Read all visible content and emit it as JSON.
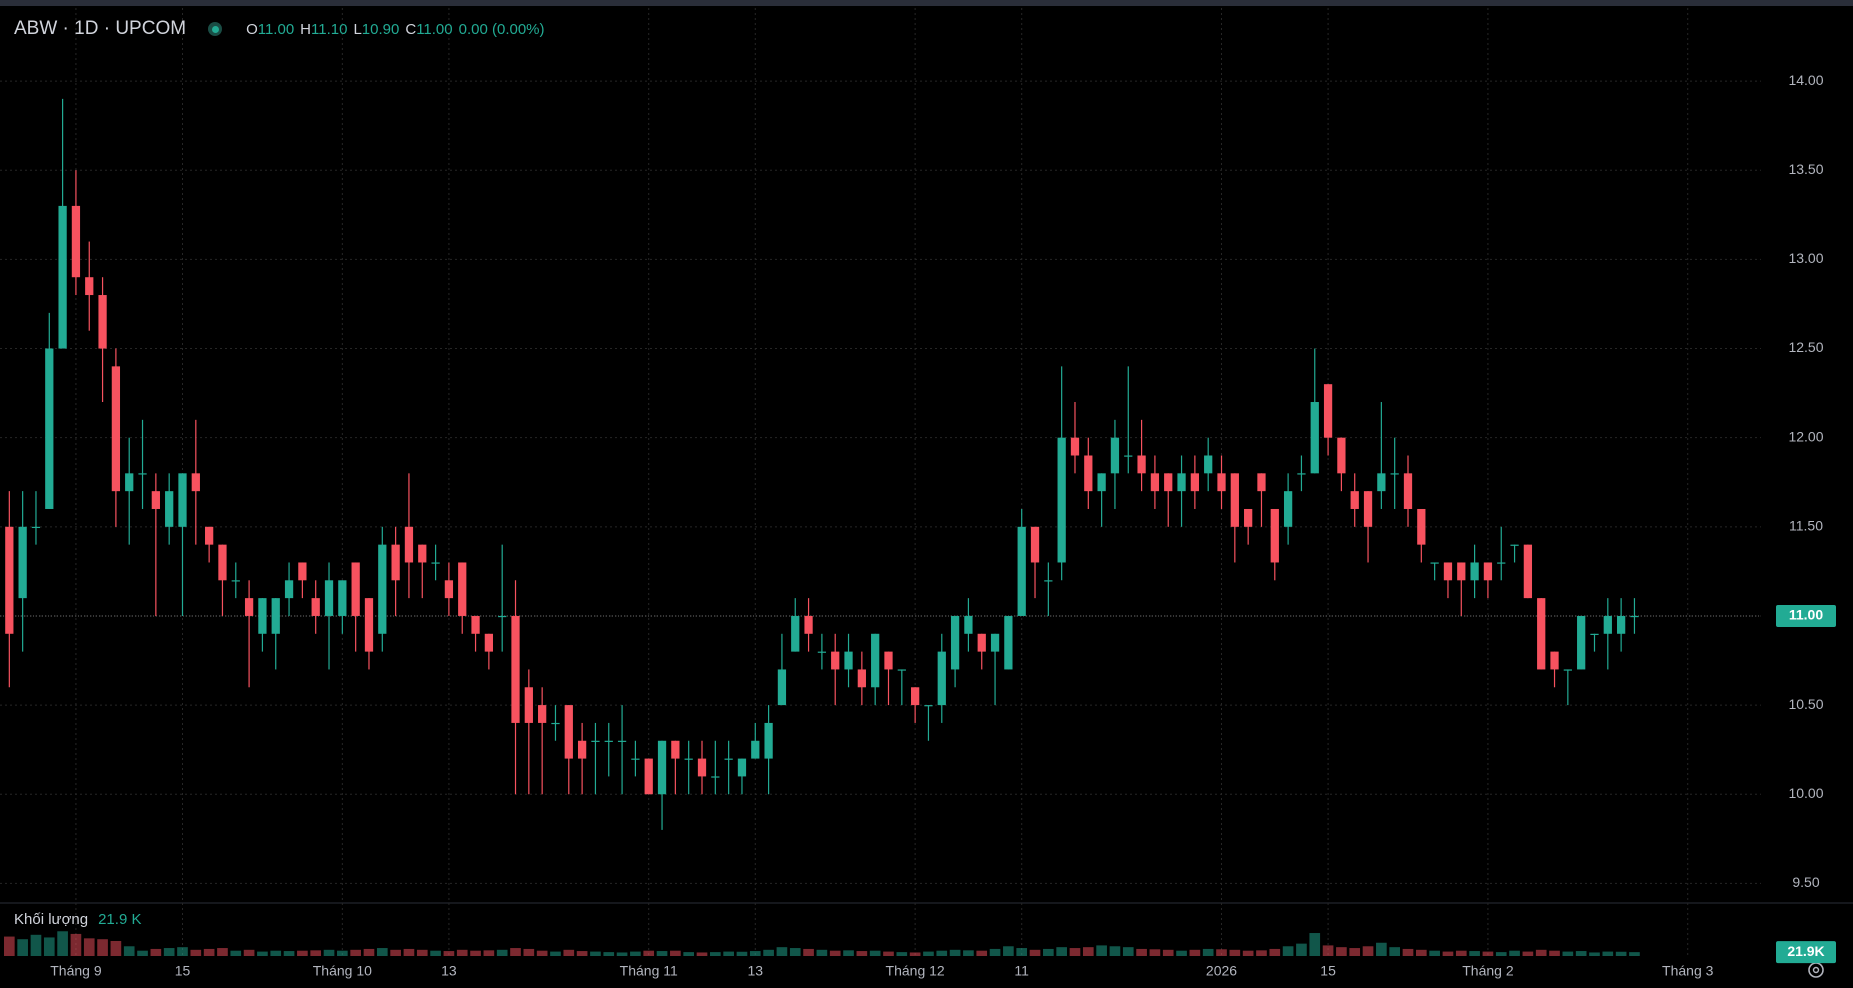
{
  "chart_data": {
    "type": "candlestick",
    "title": "ABW · 1D · UPCOM",
    "legend": [
      {
        "key": "O",
        "value": "11.00"
      },
      {
        "key": "H",
        "value": "11.10"
      },
      {
        "key": "L",
        "value": "10.90"
      },
      {
        "key": "C",
        "value": "11.00"
      }
    ],
    "change": "0.00 (0.00%)",
    "up_color": "#22ab94",
    "down_color": "#f7525f",
    "volume_up_color": "rgba(34,171,148,0.5)",
    "volume_down_color": "rgba(247,82,95,0.5)",
    "open": [
      11.5,
      11.1,
      11.5,
      11.6,
      12.5,
      13.3,
      12.9,
      12.8,
      12.4,
      11.7,
      11.8,
      11.7,
      11.5,
      11.5,
      11.8,
      11.5,
      11.4,
      11.2,
      11.1,
      10.9,
      10.9,
      11.1,
      11.3,
      11.1,
      11.0,
      11.0,
      11.3,
      11.1,
      10.9,
      11.4,
      11.5,
      11.4,
      11.3,
      11.2,
      11.3,
      11.0,
      10.9,
      11.0,
      11.0,
      10.6,
      10.5,
      10.4,
      10.5,
      10.3,
      10.3,
      10.3,
      10.3,
      10.2,
      10.2,
      10.0,
      10.3,
      10.2,
      10.2,
      10.1,
      10.2,
      10.1,
      10.2,
      10.2,
      10.5,
      10.8,
      11.0,
      10.8,
      10.8,
      10.7,
      10.7,
      10.6,
      10.8,
      10.7,
      10.6,
      10.5,
      10.5,
      10.7,
      10.9,
      10.9,
      10.8,
      10.7,
      11.0,
      11.5,
      11.2,
      11.3,
      12.0,
      11.9,
      11.7,
      11.8,
      11.9,
      11.9,
      11.8,
      11.8,
      11.7,
      11.8,
      11.8,
      11.8,
      11.8,
      11.6,
      11.8,
      11.6,
      11.5,
      11.8,
      11.8,
      12.3,
      12.0,
      11.7,
      11.7,
      11.7,
      11.8,
      11.8,
      11.6,
      11.3,
      11.3,
      11.3,
      11.2,
      11.3,
      11.3,
      11.4,
      11.4,
      11.1,
      10.8,
      10.7,
      10.7,
      10.9,
      10.9,
      10.9,
      11.0
    ],
    "high": [
      11.7,
      11.7,
      11.7,
      12.7,
      13.9,
      13.5,
      13.1,
      12.9,
      12.5,
      12.0,
      12.1,
      11.8,
      11.8,
      11.8,
      12.1,
      11.5,
      11.4,
      11.3,
      11.2,
      11.1,
      11.1,
      11.3,
      11.3,
      11.2,
      11.3,
      11.2,
      11.3,
      11.1,
      11.5,
      11.5,
      11.8,
      11.4,
      11.4,
      11.3,
      11.3,
      11.0,
      10.9,
      11.4,
      11.2,
      10.7,
      10.6,
      10.5,
      10.5,
      10.4,
      10.4,
      10.4,
      10.5,
      10.3,
      10.2,
      10.3,
      10.3,
      10.3,
      10.3,
      10.3,
      10.3,
      10.2,
      10.4,
      10.5,
      10.9,
      11.1,
      11.1,
      10.9,
      10.9,
      10.9,
      10.8,
      10.9,
      10.8,
      10.7,
      10.6,
      10.5,
      10.9,
      11.0,
      11.1,
      10.9,
      10.9,
      11.0,
      11.6,
      11.5,
      11.3,
      12.4,
      12.2,
      12.0,
      11.8,
      12.1,
      12.4,
      12.1,
      11.9,
      11.8,
      11.9,
      11.9,
      12.0,
      11.9,
      11.8,
      11.6,
      11.8,
      11.6,
      11.8,
      11.9,
      12.5,
      12.3,
      12.0,
      11.8,
      11.7,
      12.2,
      12.0,
      11.9,
      11.6,
      11.3,
      11.3,
      11.3,
      11.4,
      11.3,
      11.5,
      11.4,
      11.4,
      11.1,
      10.8,
      10.7,
      11.0,
      10.9,
      11.1,
      11.1,
      11.1
    ],
    "low": [
      10.6,
      10.8,
      11.4,
      11.6,
      12.5,
      12.8,
      12.6,
      12.2,
      11.5,
      11.4,
      11.6,
      11.0,
      11.4,
      11.0,
      11.4,
      11.3,
      11.0,
      11.1,
      10.6,
      10.8,
      10.7,
      11.0,
      11.1,
      10.9,
      10.7,
      10.9,
      10.8,
      10.7,
      10.8,
      11.0,
      11.1,
      11.1,
      11.2,
      11.0,
      10.9,
      10.8,
      10.7,
      10.8,
      10.0,
      10.0,
      10.0,
      10.3,
      10.0,
      10.0,
      10.0,
      10.1,
      10.0,
      10.1,
      10.0,
      9.8,
      10.0,
      10.0,
      10.0,
      10.0,
      10.0,
      10.0,
      10.2,
      10.0,
      10.5,
      10.8,
      10.8,
      10.7,
      10.5,
      10.6,
      10.5,
      10.5,
      10.5,
      10.5,
      10.4,
      10.3,
      10.4,
      10.6,
      10.8,
      10.7,
      10.5,
      10.7,
      11.0,
      11.1,
      11.0,
      11.2,
      11.8,
      11.6,
      11.5,
      11.6,
      11.8,
      11.7,
      11.6,
      11.5,
      11.5,
      11.6,
      11.7,
      11.6,
      11.3,
      11.4,
      11.5,
      11.2,
      11.4,
      11.7,
      11.8,
      11.9,
      11.7,
      11.5,
      11.3,
      11.6,
      11.6,
      11.5,
      11.3,
      11.2,
      11.1,
      11.0,
      11.1,
      11.1,
      11.2,
      11.3,
      11.1,
      10.7,
      10.6,
      10.5,
      10.7,
      10.8,
      10.7,
      10.8,
      10.9
    ],
    "close": [
      10.9,
      11.5,
      11.5,
      12.5,
      13.3,
      12.9,
      12.8,
      12.5,
      11.7,
      11.8,
      11.8,
      11.6,
      11.7,
      11.8,
      11.7,
      11.4,
      11.2,
      11.2,
      11.0,
      11.1,
      11.1,
      11.2,
      11.2,
      11.0,
      11.2,
      11.2,
      11.0,
      10.8,
      11.4,
      11.2,
      11.3,
      11.3,
      11.3,
      11.1,
      11.0,
      10.9,
      10.8,
      11.0,
      10.4,
      10.4,
      10.4,
      10.4,
      10.2,
      10.2,
      10.3,
      10.3,
      10.3,
      10.2,
      10.0,
      10.3,
      10.2,
      10.2,
      10.1,
      10.1,
      10.2,
      10.2,
      10.3,
      10.4,
      10.7,
      11.0,
      10.9,
      10.8,
      10.7,
      10.8,
      10.6,
      10.9,
      10.7,
      10.7,
      10.5,
      10.5,
      10.8,
      11.0,
      11.0,
      10.8,
      10.9,
      11.0,
      11.5,
      11.3,
      11.2,
      12.0,
      11.9,
      11.7,
      11.8,
      12.0,
      11.9,
      11.8,
      11.7,
      11.7,
      11.8,
      11.7,
      11.9,
      11.7,
      11.5,
      11.5,
      11.7,
      11.3,
      11.7,
      11.8,
      12.2,
      12.0,
      11.8,
      11.6,
      11.5,
      11.8,
      11.8,
      11.6,
      11.4,
      11.3,
      11.2,
      11.2,
      11.3,
      11.2,
      11.3,
      11.4,
      11.1,
      10.7,
      10.7,
      10.7,
      11.0,
      10.9,
      11.0,
      11.0,
      11.0
    ],
    "volume": [
      110,
      95,
      120,
      105,
      140,
      125,
      100,
      95,
      85,
      55,
      30,
      40,
      45,
      50,
      35,
      40,
      45,
      30,
      35,
      25,
      30,
      28,
      30,
      32,
      35,
      30,
      35,
      40,
      45,
      35,
      40,
      35,
      30,
      28,
      35,
      30,
      32,
      35,
      45,
      40,
      30,
      25,
      35,
      28,
      25,
      22,
      20,
      25,
      30,
      28,
      30,
      22,
      20,
      22,
      25,
      24,
      28,
      35,
      50,
      45,
      40,
      35,
      30,
      32,
      28,
      30,
      25,
      22,
      20,
      25,
      30,
      35,
      32,
      30,
      40,
      55,
      45,
      35,
      40,
      50,
      45,
      50,
      60,
      55,
      50,
      40,
      38,
      35,
      30,
      35,
      40,
      38,
      35,
      30,
      32,
      40,
      55,
      70,
      130,
      60,
      50,
      45,
      55,
      75,
      50,
      40,
      35,
      30,
      25,
      30,
      28,
      25,
      22,
      30,
      25,
      35,
      30,
      25,
      28,
      20,
      25,
      24,
      21.9
    ],
    "volume_label": "Khối lượng",
    "volume_value_label": "21.9 K",
    "volume_badge": "21.9K",
    "volume_ylim": [
      0,
      300
    ],
    "last_price": {
      "value": 11,
      "label": "11.00"
    },
    "ylim": [
      9.39,
      14.41
    ],
    "yticks": [
      {
        "value": 9.5,
        "label": "9.50"
      },
      {
        "value": 10,
        "label": "10.00"
      },
      {
        "value": 10.5,
        "label": "10.50"
      },
      {
        "value": 11,
        "label": "11.00"
      },
      {
        "value": 11.5,
        "label": "11.50"
      },
      {
        "value": 12,
        "label": "12.00"
      },
      {
        "value": 12.5,
        "label": "12.50"
      },
      {
        "value": 13,
        "label": "13.00"
      },
      {
        "value": 13.5,
        "label": "13.50"
      },
      {
        "value": 14,
        "label": "14.00"
      }
    ],
    "xlim": [
      -0.7,
      131.5
    ],
    "xticks": [
      {
        "value": 5,
        "label": "Tháng 9"
      },
      {
        "value": 13,
        "label": "15"
      },
      {
        "value": 25,
        "label": "Tháng 10"
      },
      {
        "value": 33,
        "label": "13"
      },
      {
        "value": 48,
        "label": "Tháng 11"
      },
      {
        "value": 56,
        "label": "13"
      },
      {
        "value": 68,
        "label": "Tháng 12"
      },
      {
        "value": 76,
        "label": "11"
      },
      {
        "value": 91,
        "label": "2026"
      },
      {
        "value": 99,
        "label": "15"
      },
      {
        "value": 111,
        "label": "Tháng 2"
      },
      {
        "value": 126,
        "label": "Tháng 3"
      }
    ],
    "grid": true
  }
}
